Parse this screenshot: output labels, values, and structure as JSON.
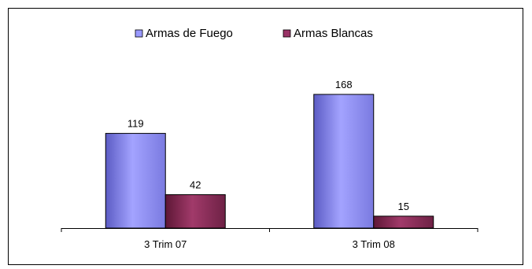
{
  "chart_data": {
    "type": "bar",
    "categories": [
      "3 Trim 07",
      "3 Trim 08"
    ],
    "series": [
      {
        "name": "Armas de Fuego",
        "values": [
          119,
          168
        ],
        "color": "#9999ff"
      },
      {
        "name": "Armas Blancas",
        "values": [
          42,
          15
        ],
        "color": "#993366"
      }
    ],
    "ylim": [
      0,
      200
    ],
    "grid": false,
    "legend_position": "top-center",
    "data_labels": true,
    "title": "",
    "xlabel": "",
    "ylabel": ""
  }
}
